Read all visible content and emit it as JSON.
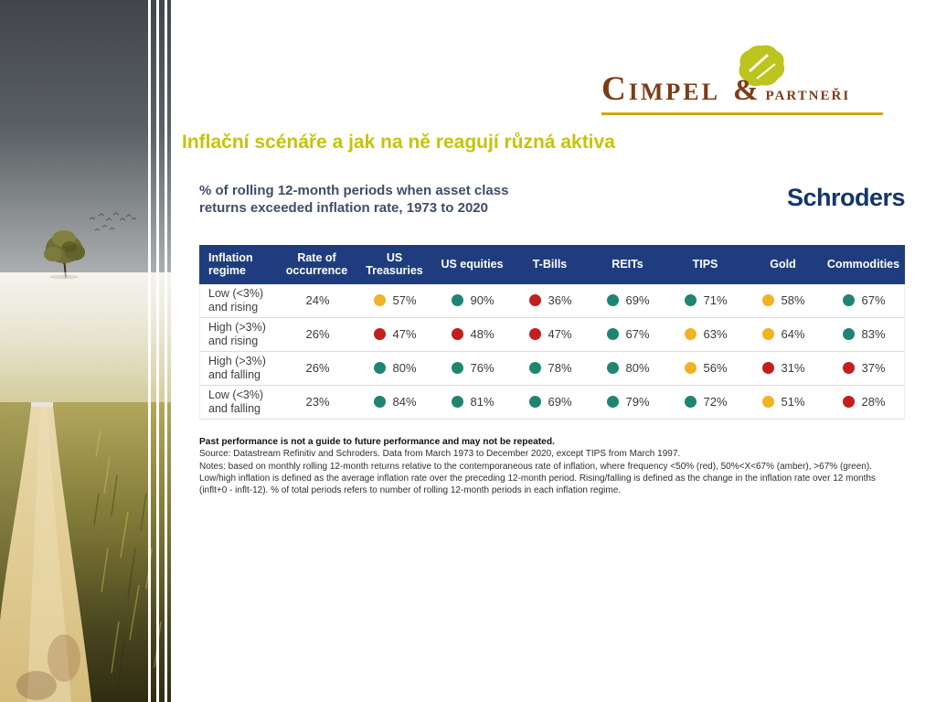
{
  "slide": {
    "title": "Inflační scénáře a jak na ně reagují různá aktiva"
  },
  "logo": {
    "primary": "Cimpel",
    "ampersand": "&",
    "secondary": "partneři",
    "brand_brown": "#7d3c17",
    "tree_green": "#bcc41e",
    "underline_gold": "#d2a700"
  },
  "chart": {
    "title_line1": "% of rolling 12-month periods when asset class",
    "title_line2": "returns exceeded inflation rate, 1973 to 2020",
    "brand": "Schroders"
  },
  "chart_data": {
    "type": "table",
    "title": "% of rolling 12-month periods when asset class returns exceeded inflation rate, 1973 to 2020",
    "columns": [
      {
        "key": "regime",
        "label": "Inflation regime"
      },
      {
        "key": "occurrence",
        "label": "Rate of occurrence"
      },
      {
        "key": "us-treasuries",
        "label": "US Treasuries"
      },
      {
        "key": "us-equities",
        "label": "US equities"
      },
      {
        "key": "t-bills",
        "label": "T-Bills"
      },
      {
        "key": "reits",
        "label": "REITs"
      },
      {
        "key": "tips",
        "label": "TIPS"
      },
      {
        "key": "gold",
        "label": "Gold"
      },
      {
        "key": "commodities",
        "label": "Commodities"
      }
    ],
    "rows": [
      {
        "label_lines": [
          "Low (<3%)",
          "and rising"
        ],
        "occurrence": "24%",
        "cells": [
          {
            "value": "57%",
            "status": "amber"
          },
          {
            "value": "90%",
            "status": "green"
          },
          {
            "value": "36%",
            "status": "red"
          },
          {
            "value": "69%",
            "status": "green"
          },
          {
            "value": "71%",
            "status": "green"
          },
          {
            "value": "58%",
            "status": "amber"
          },
          {
            "value": "67%",
            "status": "green"
          }
        ]
      },
      {
        "label_lines": [
          "High (>3%)",
          "and rising"
        ],
        "occurrence": "26%",
        "cells": [
          {
            "value": "47%",
            "status": "red"
          },
          {
            "value": "48%",
            "status": "red"
          },
          {
            "value": "47%",
            "status": "red"
          },
          {
            "value": "67%",
            "status": "green"
          },
          {
            "value": "63%",
            "status": "amber"
          },
          {
            "value": "64%",
            "status": "amber"
          },
          {
            "value": "83%",
            "status": "green"
          }
        ]
      },
      {
        "label_lines": [
          "High (>3%)",
          "and falling"
        ],
        "occurrence": "26%",
        "cells": [
          {
            "value": "80%",
            "status": "green"
          },
          {
            "value": "76%",
            "status": "green"
          },
          {
            "value": "78%",
            "status": "green"
          },
          {
            "value": "80%",
            "status": "green"
          },
          {
            "value": "56%",
            "status": "amber"
          },
          {
            "value": "31%",
            "status": "red"
          },
          {
            "value": "37%",
            "status": "red"
          }
        ]
      },
      {
        "label_lines": [
          "Low (<3%)",
          "and falling"
        ],
        "occurrence": "23%",
        "cells": [
          {
            "value": "84%",
            "status": "green"
          },
          {
            "value": "81%",
            "status": "green"
          },
          {
            "value": "69%",
            "status": "green"
          },
          {
            "value": "79%",
            "status": "green"
          },
          {
            "value": "72%",
            "status": "green"
          },
          {
            "value": "51%",
            "status": "amber"
          },
          {
            "value": "28%",
            "status": "red"
          }
        ]
      }
    ],
    "status_colors": {
      "green": "#1f8573",
      "amber": "#f0b323",
      "red": "#c41e1e"
    },
    "status_legend": {
      "red": "<50%",
      "amber": "50%<X<67%",
      "green": ">67%"
    },
    "header_bg": "#1f3d7e"
  },
  "footnotes": {
    "performance": "Past performance is not a guide to future performance and may not be repeated.",
    "source": "Source: Datastream Refinitiv and Schroders. Data from March 1973 to December 2020, except TIPS from March 1997.",
    "notes": "Notes: based on monthly rolling 12-month returns relative to the contemporaneous rate of inflation, where frequency <50% (red), 50%<X<67% (amber), >67% (green). Low/high inflation is defined as the average inflation rate over the preceding 12-month period. Rising/falling is defined as the change in the inflation rate over 12 months (inflt+0 - inflt-12). % of total periods refers to number of rolling 12-month periods in each inflation regime."
  },
  "accent_colors": {
    "slide_title": "#c5c30a",
    "chart_title_navy": "#3f4d68",
    "schroders_navy": "#15366b"
  }
}
